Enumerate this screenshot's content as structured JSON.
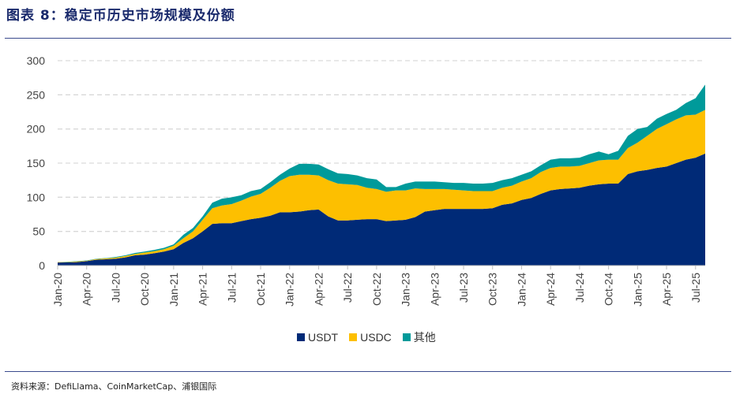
{
  "header": {
    "title": "图表 8：稳定币历史市场规模及份额"
  },
  "footer": {
    "source": "资料来源：DefiLlama、CoinMarketCap、浦银国际"
  },
  "chart_data": {
    "type": "area",
    "stacked": true,
    "title": "",
    "xlabel": "",
    "ylabel": "",
    "ylim": [
      0,
      300
    ],
    "yticks": [
      0,
      50,
      100,
      150,
      200,
      250,
      300
    ],
    "grid": "horizontal dashed",
    "legend": "bottom",
    "categories": [
      "Jan-20",
      "Feb-20",
      "Mar-20",
      "Apr-20",
      "May-20",
      "Jun-20",
      "Jul-20",
      "Aug-20",
      "Sep-20",
      "Oct-20",
      "Nov-20",
      "Dec-20",
      "Jan-21",
      "Feb-21",
      "Mar-21",
      "Apr-21",
      "May-21",
      "Jun-21",
      "Jul-21",
      "Aug-21",
      "Sep-21",
      "Oct-21",
      "Nov-21",
      "Dec-21",
      "Jan-22",
      "Feb-22",
      "Mar-22",
      "Apr-22",
      "May-22",
      "Jun-22",
      "Jul-22",
      "Aug-22",
      "Sep-22",
      "Oct-22",
      "Nov-22",
      "Dec-22",
      "Jan-23",
      "Feb-23",
      "Mar-23",
      "Apr-23",
      "May-23",
      "Jun-23",
      "Jul-23",
      "Aug-23",
      "Sep-23",
      "Oct-23",
      "Nov-23",
      "Dec-23",
      "Jan-24",
      "Feb-24",
      "Mar-24",
      "Apr-24",
      "May-24",
      "Jun-24",
      "Jul-24",
      "Aug-24",
      "Sep-24",
      "Oct-24",
      "Nov-24",
      "Dec-24",
      "Jan-25",
      "Feb-25",
      "Mar-25",
      "Apr-25",
      "May-25",
      "Jun-25",
      "Jul-25",
      "Aug-25"
    ],
    "xticks": [
      "Jan-20",
      "Apr-20",
      "Jul-20",
      "Oct-20",
      "Jan-21",
      "Apr-21",
      "Jul-21",
      "Oct-21",
      "Jan-22",
      "Apr-22",
      "Jul-22",
      "Oct-22",
      "Jan-23",
      "Apr-23",
      "Jul-23",
      "Oct-23",
      "Jan-24",
      "Apr-24",
      "Jul-24",
      "Oct-24",
      "Jan-25",
      "Apr-25",
      "Jul-25"
    ],
    "series": [
      {
        "name": "USDT",
        "color": "#002a77",
        "values": [
          4.5,
          4.6,
          5,
          6.5,
          8.5,
          9.2,
          10,
          12,
          15,
          16,
          18,
          20.5,
          24,
          33,
          40,
          50,
          61,
          62,
          62,
          65,
          68,
          70,
          73,
          78,
          78,
          79,
          81,
          82,
          72,
          66,
          66,
          67,
          68,
          68,
          65,
          66,
          67,
          71,
          79,
          81,
          83,
          83,
          83,
          83,
          83,
          84,
          89,
          91,
          96,
          99,
          105,
          110,
          112,
          113,
          114,
          117,
          119,
          120,
          120,
          134,
          138,
          140,
          143,
          145,
          150,
          155,
          158,
          164
        ]
      },
      {
        "name": "USDC",
        "color": "#fdbf00",
        "values": [
          0.5,
          0.4,
          1,
          0.5,
          1,
          1.3,
          1.5,
          2,
          2,
          3,
          3,
          3.5,
          5,
          7,
          10,
          17,
          23,
          26,
          28,
          30,
          33,
          35,
          41,
          46,
          53,
          54,
          52,
          50,
          53,
          54,
          53,
          51,
          46,
          44,
          43,
          44,
          43,
          42,
          33,
          31,
          29,
          28,
          27,
          26,
          26,
          25,
          25,
          26,
          27,
          29,
          32,
          33,
          33,
          32,
          32,
          33,
          35,
          35,
          35,
          38,
          42,
          50,
          57,
          62,
          64,
          65,
          63,
          64
        ]
      },
      {
        "name": "其他",
        "color": "#009a9a",
        "values": [
          0,
          0.5,
          0.5,
          0.5,
          0.5,
          0.5,
          1,
          1,
          1.5,
          1.5,
          2,
          2,
          2,
          5,
          5,
          5,
          8,
          10,
          10,
          8,
          8,
          7,
          8,
          9,
          11,
          16,
          16,
          16,
          16,
          15,
          15,
          14,
          14,
          14,
          7,
          5,
          10,
          10,
          11,
          11,
          10,
          10,
          11,
          11,
          11,
          12,
          11,
          11,
          10,
          10,
          10,
          12,
          12,
          12,
          12,
          13,
          13,
          8,
          13,
          18,
          20,
          13,
          15,
          15,
          14,
          18,
          24,
          37
        ]
      }
    ]
  }
}
